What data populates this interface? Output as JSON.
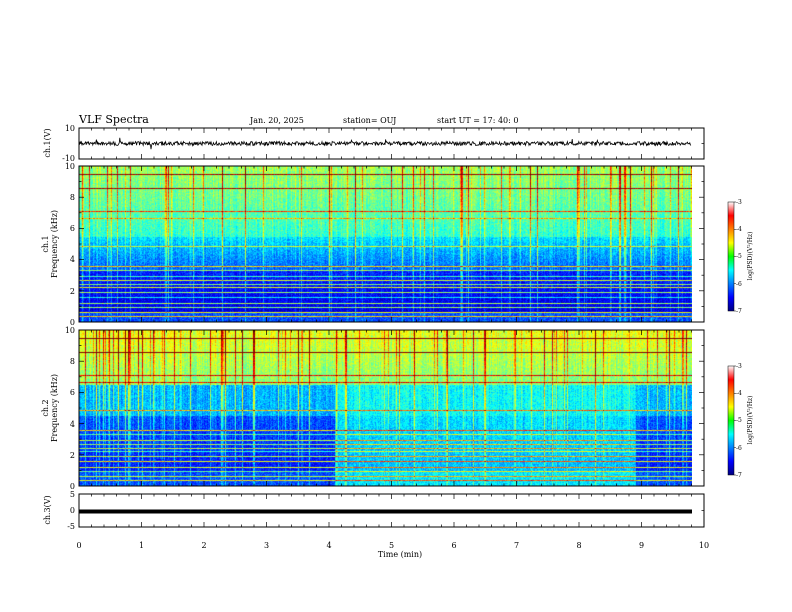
{
  "header": {
    "title": "VLF Spectra",
    "date": "Jan. 20, 2025",
    "station": "station= OUJ",
    "start_ut": "start  UT =   17: 40: 0"
  },
  "chart_data": [
    {
      "type": "line",
      "panel": "ch1-waveform",
      "ylabel": "ch.1(V)",
      "ylim": [
        -10,
        10
      ],
      "y_ticks": [
        "10",
        "-10"
      ],
      "xlim": [
        0,
        10
      ]
    },
    {
      "type": "heatmap",
      "panel": "ch1-spectrogram",
      "ylabel_line1": "ch.1",
      "ylabel_line2": "Frequency  (kHz)",
      "ylim": [
        0,
        10
      ],
      "y_ticks": [
        "10",
        "8",
        "6",
        "4",
        "2",
        "0"
      ],
      "xlim": [
        0,
        10
      ],
      "data_extent_min": 9.8,
      "colorbar": {
        "label": "log(PSD)(V²/Hz)",
        "range": [
          -7,
          -3
        ],
        "ticks": [
          "-3",
          "-4",
          "-5",
          "-6",
          "-7"
        ]
      }
    },
    {
      "type": "heatmap",
      "panel": "ch2-spectrogram",
      "ylabel_line1": "ch.2",
      "ylabel_line2": "Frequency  (kHz)",
      "ylim": [
        0,
        10
      ],
      "y_ticks": [
        "10",
        "8",
        "6",
        "4",
        "2",
        "0"
      ],
      "xlim": [
        0,
        10
      ],
      "data_extent_min": 9.8,
      "colorbar": {
        "label": "log(PSD)(V²/Hz)",
        "range": [
          -7,
          -3
        ],
        "ticks": [
          "-3",
          "-4",
          "-5",
          "-6",
          "-7"
        ]
      }
    },
    {
      "type": "line",
      "panel": "ch3-waveform",
      "ylabel": "ch.3(V)",
      "ylim": [
        -5,
        5
      ],
      "y_ticks": [
        "5",
        "0",
        "-5"
      ],
      "xlim": [
        0,
        10
      ],
      "xlabel": "Time  (min)",
      "x_ticks": [
        "0",
        "1",
        "2",
        "3",
        "4",
        "5",
        "6",
        "7",
        "8",
        "9",
        "10"
      ]
    }
  ]
}
